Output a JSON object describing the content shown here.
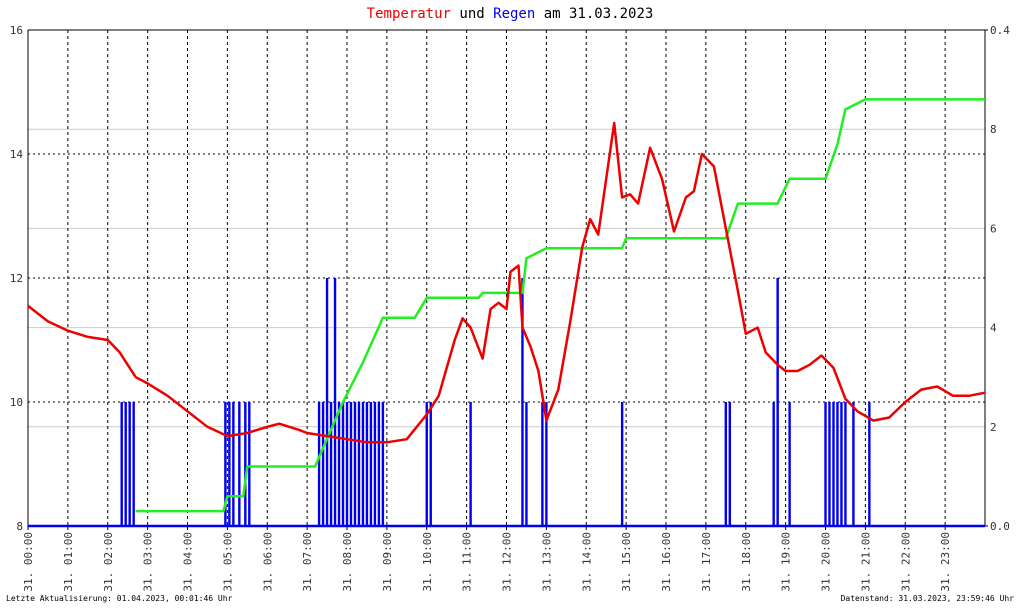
{
  "chart_data": {
    "type": "line",
    "title_parts": [
      "Temperatur",
      "und",
      "Regen",
      "am 31.03.2023"
    ],
    "footer_left": "Letzte Aktualisierung: 01.04.2023, 00:01:46 Uhr",
    "footer_right": "Datenstand: 31.03.2023, 23:59:46 Uhr",
    "xlim": [
      0,
      24
    ],
    "xticks": [
      {
        "value": 0,
        "label": "31. 00:00"
      },
      {
        "value": 1,
        "label": "31. 01:00"
      },
      {
        "value": 2,
        "label": "31. 02:00"
      },
      {
        "value": 3,
        "label": "31. 03:00"
      },
      {
        "value": 4,
        "label": "31. 04:00"
      },
      {
        "value": 5,
        "label": "31. 05:00"
      },
      {
        "value": 6,
        "label": "31. 06:00"
      },
      {
        "value": 7,
        "label": "31. 07:00"
      },
      {
        "value": 8,
        "label": "31. 08:00"
      },
      {
        "value": 9,
        "label": "31. 09:00"
      },
      {
        "value": 10,
        "label": "31. 10:00"
      },
      {
        "value": 11,
        "label": "31. 11:00"
      },
      {
        "value": 12,
        "label": "31. 12:00"
      },
      {
        "value": 13,
        "label": "31. 13:00"
      },
      {
        "value": 14,
        "label": "31. 14:00"
      },
      {
        "value": 15,
        "label": "31. 15:00"
      },
      {
        "value": 16,
        "label": "31. 16:00"
      },
      {
        "value": 17,
        "label": "31. 17:00"
      },
      {
        "value": 18,
        "label": "31. 18:00"
      },
      {
        "value": 19,
        "label": "31. 19:00"
      },
      {
        "value": 20,
        "label": "31. 20:00"
      },
      {
        "value": 21,
        "label": "31. 21:00"
      },
      {
        "value": 22,
        "label": "31. 22:00"
      },
      {
        "value": 23,
        "label": "31. 23:00"
      }
    ],
    "ylim": [
      8,
      16
    ],
    "yticks": [
      8,
      10,
      12,
      14,
      16
    ],
    "y2lim": [
      0,
      0.4
    ],
    "y2ticks": [
      {
        "value": 0,
        "label": "0.0"
      },
      0.4
    ],
    "y3lim": [
      0,
      10
    ],
    "y3ticks": [
      2,
      4,
      6,
      8
    ],
    "grid": true,
    "series": [
      {
        "type": "line",
        "axis": "y",
        "color": "#ee0000",
        "x": [
          0,
          0.5,
          1,
          1.5,
          2,
          2.3,
          2.7,
          3,
          3.5,
          4,
          4.5,
          5,
          5.5,
          6,
          6.3,
          6.8,
          7,
          7.5,
          8,
          8.5,
          9,
          9.5,
          10,
          10.3,
          10.7,
          10.9,
          11.1,
          11.4,
          11.6,
          11.8,
          12,
          12.1,
          12.3,
          12.4,
          12.6,
          12.8,
          13,
          13.3,
          13.6,
          13.9,
          14.1,
          14.3,
          14.5,
          14.7,
          14.9,
          15.1,
          15.3,
          15.6,
          15.9,
          16.2,
          16.5,
          16.7,
          16.9,
          17.2,
          17.5,
          17.8,
          18,
          18.3,
          18.5,
          18.8,
          19,
          19.3,
          19.6,
          19.9,
          20.2,
          20.5,
          20.8,
          21.2,
          21.6,
          22,
          22.4,
          22.8,
          23.2,
          23.6,
          24
        ],
        "values": [
          11.55,
          11.3,
          11.15,
          11.05,
          11,
          10.8,
          10.4,
          10.3,
          10.1,
          9.85,
          9.6,
          9.45,
          9.5,
          9.6,
          9.65,
          9.55,
          9.5,
          9.45,
          9.4,
          9.35,
          9.35,
          9.4,
          9.8,
          10.1,
          11,
          11.35,
          11.2,
          10.7,
          11.5,
          11.6,
          11.5,
          12.1,
          12.2,
          11.2,
          10.9,
          10.5,
          9.7,
          10.2,
          11.3,
          12.5,
          12.95,
          12.7,
          13.6,
          14.5,
          13.3,
          13.35,
          13.2,
          14.1,
          13.6,
          12.75,
          13.3,
          13.4,
          14,
          13.8,
          12.8,
          11.8,
          11.1,
          11.2,
          10.8,
          10.6,
          10.5,
          10.5,
          10.6,
          10.75,
          10.55,
          10.05,
          9.85,
          9.7,
          9.75,
          10,
          10.2,
          10.25,
          10.1,
          10.1,
          10.15
        ]
      },
      {
        "type": "bar",
        "axis": "y2",
        "color": "#0000ee",
        "x": [
          2.35,
          2.45,
          2.55,
          2.65,
          4.95,
          5.05,
          5.15,
          5.3,
          5.45,
          5.55,
          7.3,
          7.4,
          7.5,
          7.6,
          7.7,
          7.8,
          7.9,
          8.0,
          8.1,
          8.2,
          8.3,
          8.4,
          8.5,
          8.6,
          8.7,
          8.8,
          8.9,
          10.0,
          10.1,
          11.1,
          12.4,
          12.5,
          12.9,
          13.0,
          14.9,
          17.5,
          17.6,
          18.7,
          18.8,
          19.1,
          20.0,
          20.1,
          20.2,
          20.3,
          20.4,
          20.5,
          20.7,
          21.1
        ],
        "values": [
          0.1,
          0.1,
          0.1,
          0.1,
          0.1,
          0.1,
          0.1,
          0.1,
          0.1,
          0.1,
          0.1,
          0.1,
          0.2,
          0.1,
          0.2,
          0.1,
          0.1,
          0.1,
          0.1,
          0.1,
          0.1,
          0.1,
          0.1,
          0.1,
          0.1,
          0.1,
          0.1,
          0.1,
          0.1,
          0.1,
          0.2,
          0.1,
          0.1,
          0.1,
          0.1,
          0.1,
          0.1,
          0.1,
          0.2,
          0.1,
          0.1,
          0.1,
          0.1,
          0.1,
          0.1,
          0.1,
          0.1,
          0.1
        ]
      },
      {
        "type": "line",
        "axis": "y3",
        "color": "#22ee22",
        "x": [
          2.7,
          4.9,
          5.0,
          5.4,
          5.5,
          7.2,
          7.9,
          8.4,
          8.9,
          9.7,
          10.0,
          11.3,
          11.4,
          12.4,
          12.5,
          13.0,
          14.9,
          15.0,
          17.5,
          17.8,
          18.8,
          19.1,
          20.0,
          20.3,
          20.5,
          21.0,
          24
        ],
        "values": [
          0.3,
          0.3,
          0.6,
          0.6,
          1.2,
          1.2,
          2.5,
          3.3,
          4.2,
          4.2,
          4.6,
          4.6,
          4.7,
          4.7,
          5.4,
          5.6,
          5.6,
          5.8,
          5.8,
          6.5,
          6.5,
          7.0,
          7.0,
          7.7,
          8.4,
          8.6,
          8.6
        ]
      }
    ]
  }
}
